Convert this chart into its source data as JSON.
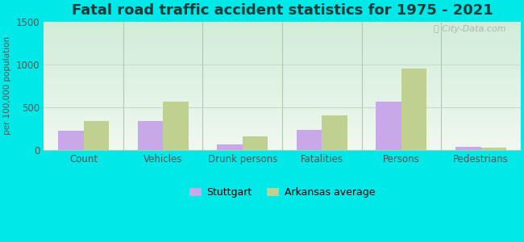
{
  "title": "Fatal road traffic accident statistics for 1975 - 2021",
  "ylabel": "per 100,000 population",
  "categories": [
    "Count",
    "Vehicles",
    "Drunk persons",
    "Fatalities",
    "Persons",
    "Pedestrians"
  ],
  "stuttgart_values": [
    220,
    340,
    60,
    230,
    560,
    35
  ],
  "arkansas_values": [
    340,
    560,
    155,
    400,
    950,
    30
  ],
  "stuttgart_color": "#c8a8e8",
  "arkansas_color": "#c0d090",
  "background_color": "#00e8e8",
  "plot_bg_top": "#d0edd8",
  "plot_bg_bottom": "#f0f8f0",
  "ylim": [
    0,
    1500
  ],
  "yticks": [
    0,
    500,
    1000,
    1500
  ],
  "bar_width": 0.32,
  "legend_stuttgart": "Stuttgart",
  "legend_arkansas": "Arkansas average",
  "title_fontsize": 13,
  "title_color": "#1a3a3a",
  "watermark": "City-Data.com",
  "tick_color": "#555555",
  "grid_color": "#c8dcc8",
  "divider_color": "#b0c8b0"
}
